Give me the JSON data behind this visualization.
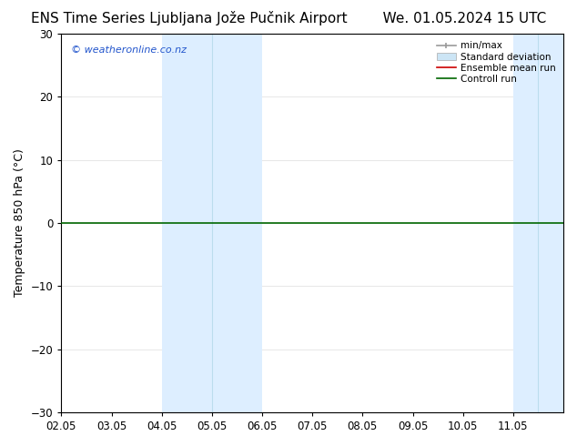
{
  "title": "ENS Time Series Ljubljana Jože Pučnik Airport        We. 01.05.2024 15 UTC",
  "title_left": "ENS Time Series Ljubljana Jože Pučnik Airport",
  "title_right": "We. 01.05.2024 15 UTC",
  "ylabel": "Temperature 850 hPa (°C)",
  "watermark": "© weatheronline.co.nz",
  "ylim": [
    -30,
    30
  ],
  "yticks": [
    -30,
    -20,
    -10,
    0,
    10,
    20,
    30
  ],
  "xlim": [
    2.0,
    12.0
  ],
  "xtick_positions": [
    2,
    3,
    4,
    5,
    6,
    7,
    8,
    9,
    10,
    11
  ],
  "xtick_labels": [
    "02.05",
    "03.05",
    "04.05",
    "05.05",
    "06.05",
    "07.05",
    "08.05",
    "09.05",
    "10.05",
    "11.05"
  ],
  "shaded_bands": [
    {
      "x_start": 4.0,
      "x_end": 5.0,
      "color": "#ddeeff"
    },
    {
      "x_start": 5.0,
      "x_end": 6.0,
      "color": "#ddeeff"
    },
    {
      "x_start": 11.0,
      "x_end": 11.5,
      "color": "#ddeeff"
    },
    {
      "x_start": 11.5,
      "x_end": 12.0,
      "color": "#ddeeff"
    }
  ],
  "shaded_bands_combined": [
    {
      "x_start": 4.0,
      "x_end": 6.0,
      "color": "#ddeeff"
    },
    {
      "x_start": 11.0,
      "x_end": 12.0,
      "color": "#ddeeff"
    }
  ],
  "band_dividers": [
    5.0,
    11.5
  ],
  "control_run_y": 0.0,
  "control_run_color": "#006600",
  "ensemble_mean_color": "#cc0000",
  "background_color": "#ffffff",
  "legend_items": [
    {
      "label": "min/max",
      "color": "#aaaaaa"
    },
    {
      "label": "Standard deviation",
      "color": "#cce5f5"
    },
    {
      "label": "Ensemble mean run",
      "color": "#cc0000"
    },
    {
      "label": "Controll run",
      "color": "#006600"
    }
  ],
  "title_fontsize": 11,
  "axis_label_fontsize": 9,
  "tick_fontsize": 8.5,
  "watermark_color": "#2255cc",
  "watermark_fontsize": 8,
  "legend_fontsize": 7.5
}
